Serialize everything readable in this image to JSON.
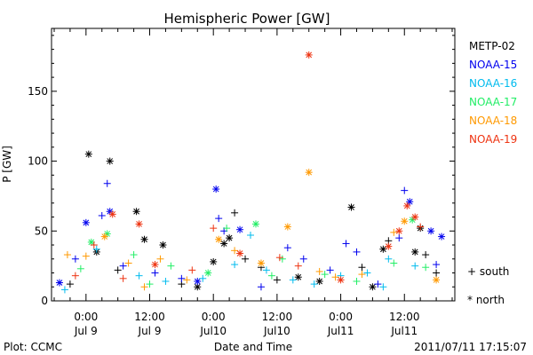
{
  "chart_data": {
    "type": "scatter",
    "title": "Hemispheric Power [GW]",
    "ylabel": "P [GW]",
    "xlabel": "Date and Time",
    "x_unit": "hours",
    "ylim": [
      0,
      195
    ],
    "xlim": [
      -6.5,
      69.5
    ],
    "yticks": [
      0,
      50,
      100,
      150
    ],
    "xticks": [
      {
        "x": 0,
        "time": "0:00",
        "date": "Jul 9"
      },
      {
        "x": 12,
        "time": "12:00",
        "date": "Jul 9"
      },
      {
        "x": 24,
        "time": "0:00",
        "date": "Jul10"
      },
      {
        "x": 36,
        "time": "12:00",
        "date": "Jul10"
      },
      {
        "x": 48,
        "time": "0:00",
        "date": "Jul11"
      },
      {
        "x": 60,
        "time": "12:00",
        "date": "Jul11"
      }
    ],
    "grid": false,
    "legend_position": "right",
    "marker_legend": [
      {
        "label": "+ south",
        "marker": "plus"
      },
      {
        "label": "* north",
        "marker": "star"
      }
    ],
    "series": [
      {
        "name": "METP-02",
        "color": "#000000",
        "points": [
          {
            "x": 0.5,
            "y": 105,
            "m": "star"
          },
          {
            "x": 4.5,
            "y": 100,
            "m": "star"
          },
          {
            "x": 9.5,
            "y": 64,
            "m": "star"
          },
          {
            "x": 11,
            "y": 44,
            "m": "star"
          },
          {
            "x": 14.5,
            "y": 40,
            "m": "star"
          },
          {
            "x": 26,
            "y": 41,
            "m": "star"
          },
          {
            "x": 27,
            "y": 45,
            "m": "star"
          },
          {
            "x": 28,
            "y": 63,
            "m": "plus"
          },
          {
            "x": 30,
            "y": 30,
            "m": "plus"
          },
          {
            "x": 40,
            "y": 17,
            "m": "star"
          },
          {
            "x": 50,
            "y": 67,
            "m": "star"
          },
          {
            "x": 56,
            "y": 37,
            "m": "star"
          },
          {
            "x": 62,
            "y": 35,
            "m": "star"
          },
          {
            "x": 63,
            "y": 52,
            "m": "star"
          },
          {
            "x": 64,
            "y": 33,
            "m": "plus"
          },
          {
            "x": -3,
            "y": 12,
            "m": "plus"
          },
          {
            "x": 2,
            "y": 35,
            "m": "star"
          },
          {
            "x": 6,
            "y": 22,
            "m": "plus"
          },
          {
            "x": 18,
            "y": 12,
            "m": "plus"
          },
          {
            "x": 21,
            "y": 10,
            "m": "star"
          },
          {
            "x": 33,
            "y": 24,
            "m": "plus"
          },
          {
            "x": 44,
            "y": 14,
            "m": "star"
          },
          {
            "x": 52,
            "y": 24,
            "m": "plus"
          },
          {
            "x": 54,
            "y": 10,
            "m": "star"
          },
          {
            "x": 57,
            "y": 43,
            "m": "plus"
          },
          {
            "x": 66,
            "y": 20,
            "m": "plus"
          },
          {
            "x": 36,
            "y": 15,
            "m": "plus"
          },
          {
            "x": 24,
            "y": 28,
            "m": "star"
          }
        ]
      },
      {
        "name": "NOAA-15",
        "color": "#0000ee",
        "points": [
          {
            "x": 4,
            "y": 84,
            "m": "plus"
          },
          {
            "x": 24.5,
            "y": 80,
            "m": "star"
          },
          {
            "x": 25,
            "y": 59,
            "m": "plus"
          },
          {
            "x": 26,
            "y": 50,
            "m": "plus"
          },
          {
            "x": 29,
            "y": 51,
            "m": "star"
          },
          {
            "x": 4.5,
            "y": 64,
            "m": "star"
          },
          {
            "x": 3,
            "y": 61,
            "m": "plus"
          },
          {
            "x": 0,
            "y": 56,
            "m": "star"
          },
          {
            "x": -2,
            "y": 30,
            "m": "plus"
          },
          {
            "x": 7,
            "y": 25,
            "m": "plus"
          },
          {
            "x": 13,
            "y": 20,
            "m": "plus"
          },
          {
            "x": 38,
            "y": 38,
            "m": "plus"
          },
          {
            "x": 41,
            "y": 30,
            "m": "plus"
          },
          {
            "x": 49,
            "y": 41,
            "m": "plus"
          },
          {
            "x": 51,
            "y": 35,
            "m": "plus"
          },
          {
            "x": 59,
            "y": 45,
            "m": "plus"
          },
          {
            "x": 60,
            "y": 79,
            "m": "plus"
          },
          {
            "x": 61,
            "y": 71,
            "m": "star"
          },
          {
            "x": 65,
            "y": 50,
            "m": "star"
          },
          {
            "x": 67,
            "y": 46,
            "m": "star"
          },
          {
            "x": 66,
            "y": 26,
            "m": "plus"
          },
          {
            "x": 46,
            "y": 22,
            "m": "plus"
          },
          {
            "x": 55,
            "y": 12,
            "m": "plus"
          },
          {
            "x": 33,
            "y": 10,
            "m": "plus"
          },
          {
            "x": -5,
            "y": 13,
            "m": "star"
          },
          {
            "x": 18,
            "y": 16,
            "m": "plus"
          },
          {
            "x": 21,
            "y": 14,
            "m": "star"
          }
        ]
      },
      {
        "name": "NOAA-16",
        "color": "#00bbee",
        "points": [
          {
            "x": 31,
            "y": 47,
            "m": "plus"
          },
          {
            "x": 34,
            "y": 22,
            "m": "plus"
          },
          {
            "x": 10,
            "y": 18,
            "m": "plus"
          },
          {
            "x": 2,
            "y": 37,
            "m": "plus"
          },
          {
            "x": 53,
            "y": 20,
            "m": "plus"
          },
          {
            "x": 56,
            "y": 10,
            "m": "plus"
          },
          {
            "x": 57,
            "y": 30,
            "m": "plus"
          },
          {
            "x": 39,
            "y": 15,
            "m": "plus"
          },
          {
            "x": 43,
            "y": 12,
            "m": "plus"
          },
          {
            "x": 15,
            "y": 14,
            "m": "plus"
          },
          {
            "x": 22,
            "y": 16,
            "m": "plus"
          },
          {
            "x": -4,
            "y": 8,
            "m": "plus"
          },
          {
            "x": 62,
            "y": 25,
            "m": "plus"
          },
          {
            "x": 48,
            "y": 18,
            "m": "plus"
          },
          {
            "x": 28,
            "y": 26,
            "m": "plus"
          }
        ]
      },
      {
        "name": "NOAA-17",
        "color": "#22ee66",
        "points": [
          {
            "x": 32,
            "y": 55,
            "m": "star"
          },
          {
            "x": 26.5,
            "y": 52,
            "m": "plus"
          },
          {
            "x": 4,
            "y": 48,
            "m": "star"
          },
          {
            "x": 1,
            "y": 42,
            "m": "star"
          },
          {
            "x": 9,
            "y": 33,
            "m": "plus"
          },
          {
            "x": 37,
            "y": 30,
            "m": "plus"
          },
          {
            "x": 45,
            "y": 19,
            "m": "plus"
          },
          {
            "x": 58,
            "y": 27,
            "m": "plus"
          },
          {
            "x": 61.5,
            "y": 58,
            "m": "star"
          },
          {
            "x": 64,
            "y": 24,
            "m": "plus"
          },
          {
            "x": 23,
            "y": 20,
            "m": "star"
          },
          {
            "x": 16,
            "y": 25,
            "m": "plus"
          },
          {
            "x": -1,
            "y": 23,
            "m": "plus"
          },
          {
            "x": 51,
            "y": 14,
            "m": "plus"
          },
          {
            "x": 12,
            "y": 12,
            "m": "plus"
          },
          {
            "x": 35,
            "y": 18,
            "m": "plus"
          }
        ]
      },
      {
        "name": "NOAA-18",
        "color": "#ff9900",
        "points": [
          {
            "x": 42,
            "y": 92,
            "m": "star"
          },
          {
            "x": 38,
            "y": 53,
            "m": "star"
          },
          {
            "x": 3.5,
            "y": 46,
            "m": "star"
          },
          {
            "x": 0,
            "y": 32,
            "m": "plus"
          },
          {
            "x": -3.5,
            "y": 33,
            "m": "plus"
          },
          {
            "x": 8,
            "y": 27,
            "m": "plus"
          },
          {
            "x": 14,
            "y": 30,
            "m": "plus"
          },
          {
            "x": 25,
            "y": 44,
            "m": "star"
          },
          {
            "x": 28,
            "y": 36,
            "m": "plus"
          },
          {
            "x": 33,
            "y": 27,
            "m": "star"
          },
          {
            "x": 47,
            "y": 17,
            "m": "plus"
          },
          {
            "x": 58,
            "y": 49,
            "m": "plus"
          },
          {
            "x": 60,
            "y": 57,
            "m": "star"
          },
          {
            "x": 66,
            "y": 15,
            "m": "star"
          },
          {
            "x": 52,
            "y": 19,
            "m": "plus"
          },
          {
            "x": 19,
            "y": 15,
            "m": "plus"
          },
          {
            "x": 11,
            "y": 10,
            "m": "plus"
          },
          {
            "x": 44,
            "y": 21,
            "m": "plus"
          }
        ]
      },
      {
        "name": "NOAA-19",
        "color": "#ee3311",
        "points": [
          {
            "x": 42,
            "y": 176,
            "m": "star"
          },
          {
            "x": 10,
            "y": 55,
            "m": "star"
          },
          {
            "x": 1.5,
            "y": 40,
            "m": "plus"
          },
          {
            "x": 5,
            "y": 62,
            "m": "star"
          },
          {
            "x": 24,
            "y": 52,
            "m": "plus"
          },
          {
            "x": 36.5,
            "y": 31,
            "m": "plus"
          },
          {
            "x": 59,
            "y": 50,
            "m": "star"
          },
          {
            "x": 60.5,
            "y": 68,
            "m": "star"
          },
          {
            "x": 62,
            "y": 60,
            "m": "star"
          },
          {
            "x": 63,
            "y": 53,
            "m": "plus"
          },
          {
            "x": 57,
            "y": 39,
            "m": "star"
          },
          {
            "x": 13,
            "y": 26,
            "m": "star"
          },
          {
            "x": 20,
            "y": 22,
            "m": "plus"
          },
          {
            "x": 29,
            "y": 34,
            "m": "star"
          },
          {
            "x": 40,
            "y": 25,
            "m": "plus"
          },
          {
            "x": 48,
            "y": 15,
            "m": "star"
          },
          {
            "x": -2,
            "y": 18,
            "m": "plus"
          },
          {
            "x": 7,
            "y": 16,
            "m": "plus"
          }
        ]
      }
    ],
    "footer_left": "Plot: CCMC",
    "footer_right": "2011/07/11 17:15:07"
  }
}
